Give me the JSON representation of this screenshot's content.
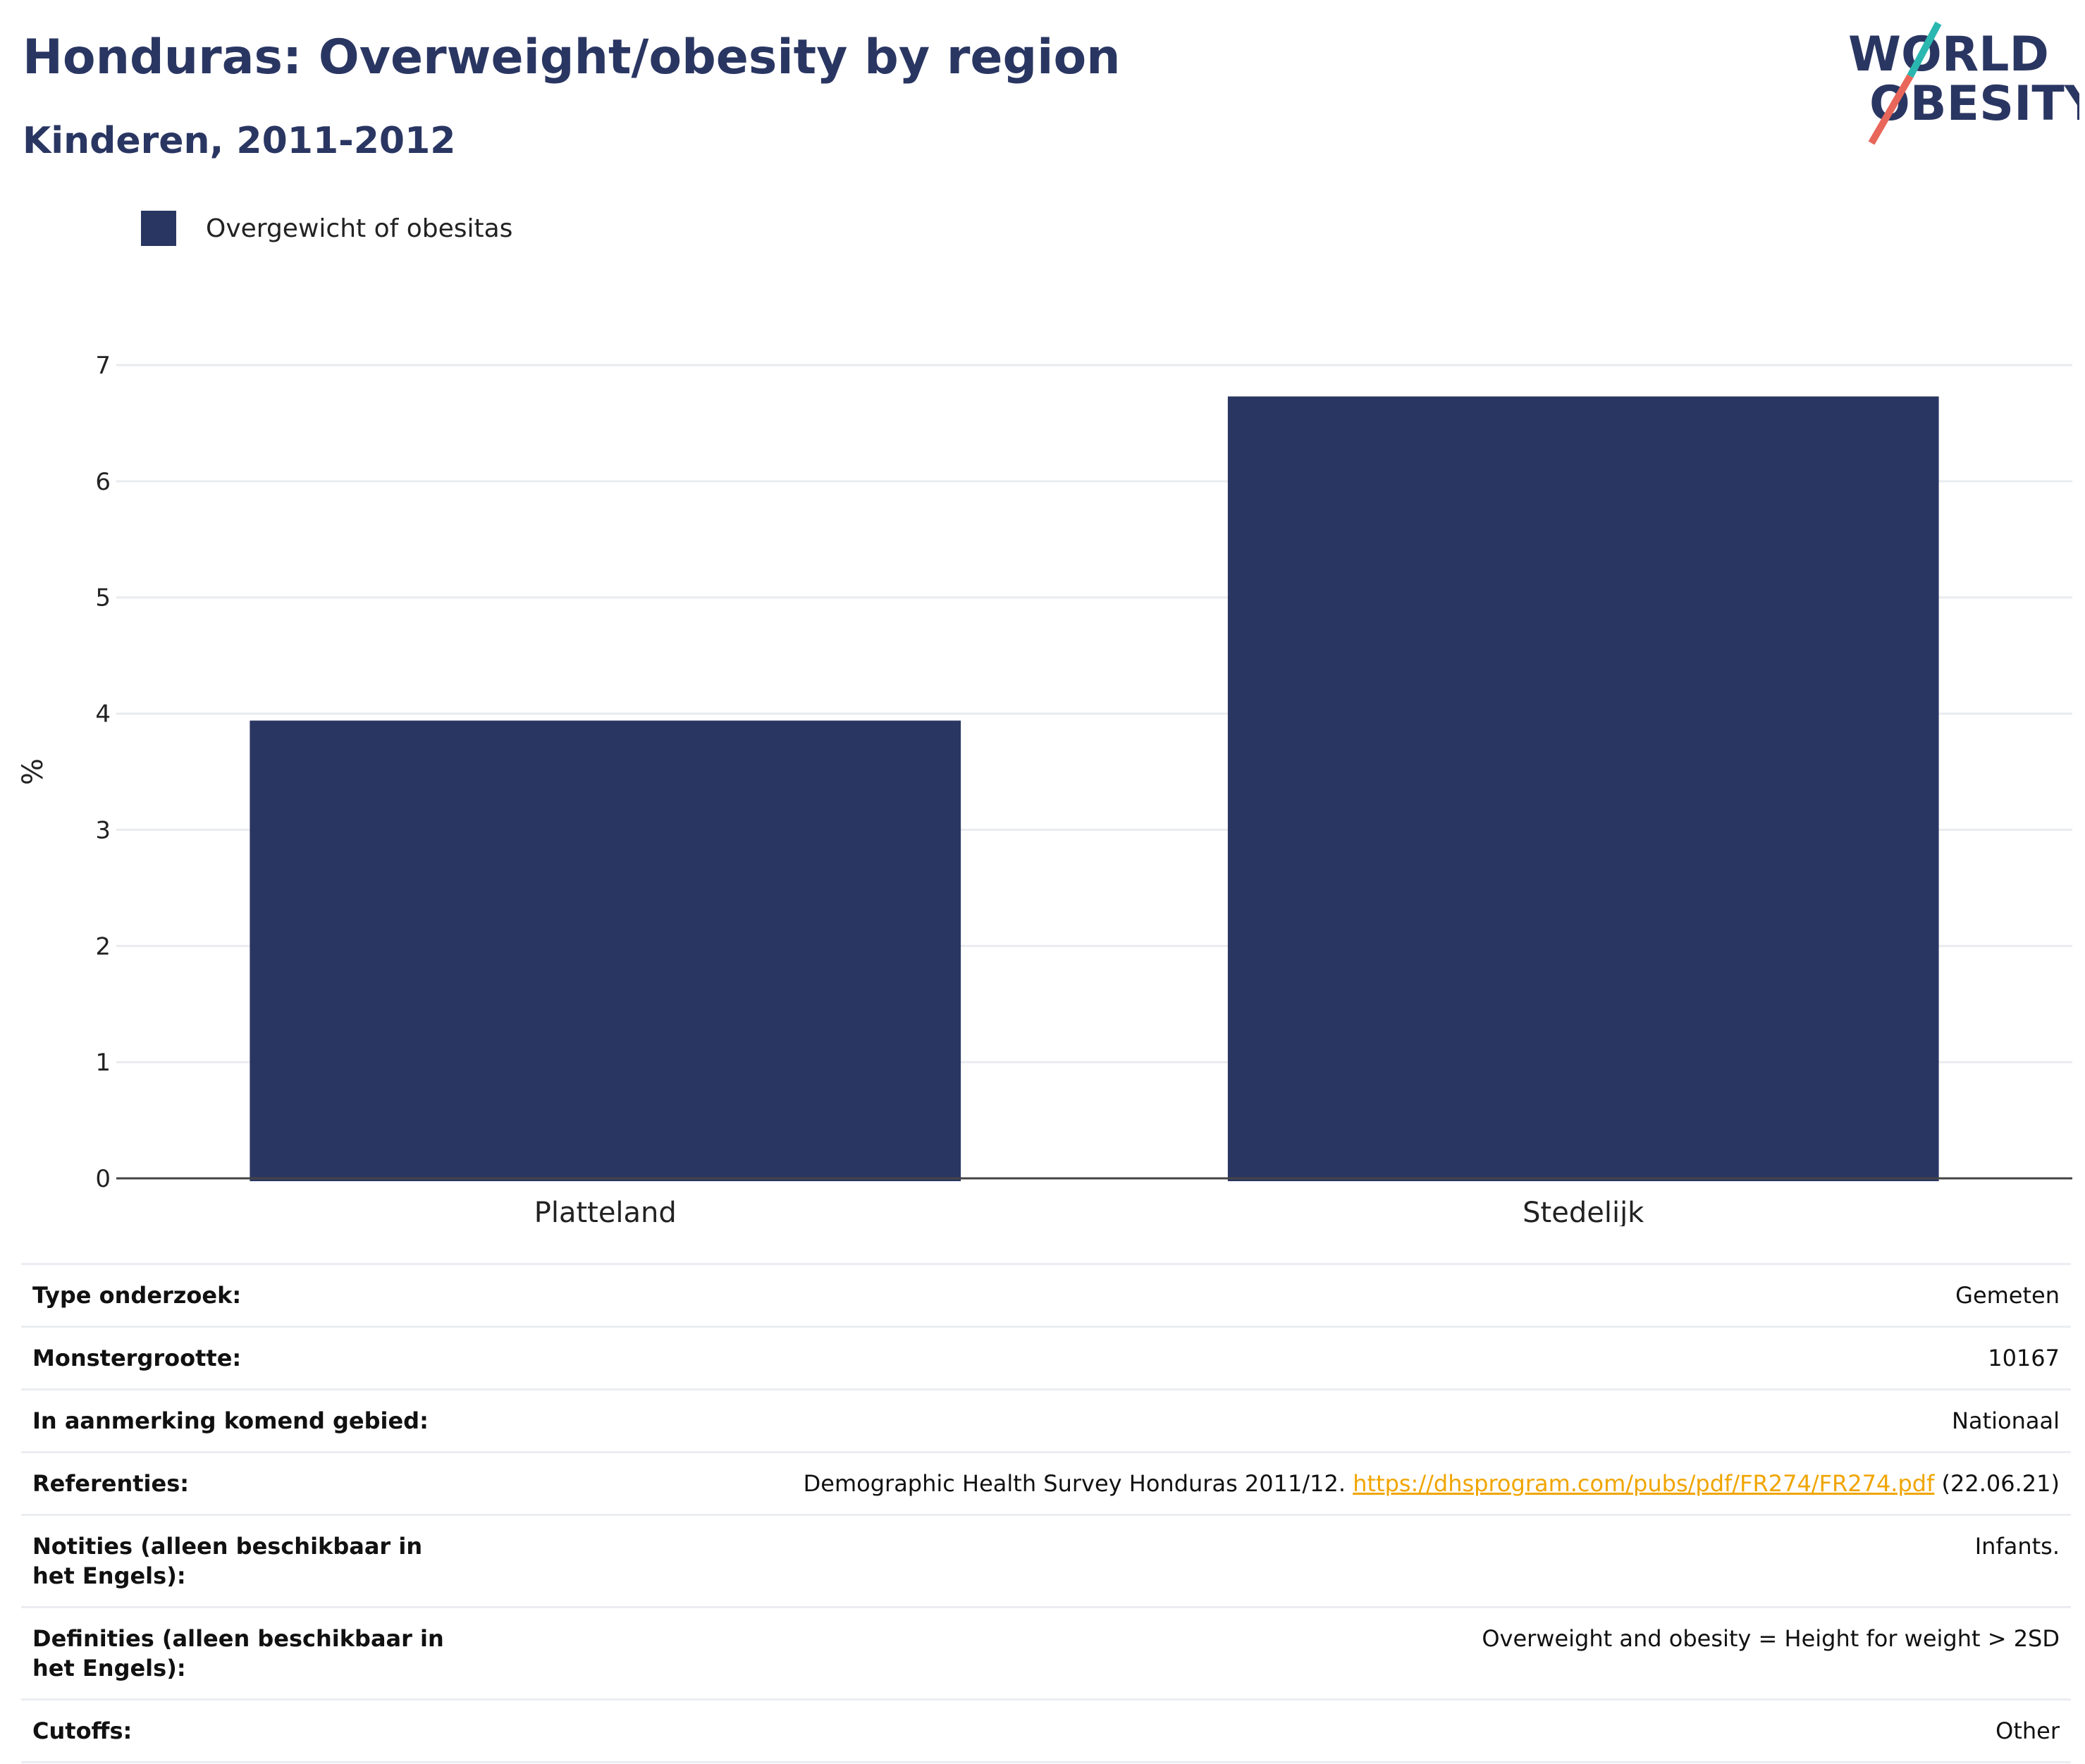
{
  "header": {
    "title": "Honduras: Overweight/obesity by region",
    "subtitle": "Kinderen, 2011-2012"
  },
  "logo": {
    "line1": "WORLD",
    "line2": "OBESITY",
    "colors": {
      "text": "#2a3662",
      "slash_top": "#2ab7b0",
      "slash_bottom": "#e8665a"
    }
  },
  "legend": {
    "label": "Overgewicht of obesitas",
    "color": "#2a3662"
  },
  "chart_data": {
    "type": "bar",
    "categories": [
      "Platteland",
      "Stedelijk"
    ],
    "series": [
      {
        "name": "Overgewicht of obesitas",
        "values": [
          3.94,
          6.73
        ],
        "color": "#2a3662"
      }
    ],
    "ylabel": "%",
    "xlabel": "",
    "ylim": [
      0,
      7
    ],
    "yticks": [
      0,
      1,
      2,
      3,
      4,
      5,
      6,
      7
    ],
    "grid": true,
    "legend_position": "top-left"
  },
  "metadata": {
    "rows": [
      {
        "label": "Type onderzoek:",
        "value": "Gemeten"
      },
      {
        "label": "Monstergrootte:",
        "value": "10167"
      },
      {
        "label": "In aanmerking komend gebied:",
        "value": "Nationaal"
      },
      {
        "label": "Referenties:",
        "value_pre": "Demographic Health Survey Honduras 2011/12.",
        "link": "https://dhsprogram.com/pubs/pdf/FR274/FR274.pdf",
        "value_post": "(22.06.21)"
      },
      {
        "label": "Notities (alleen beschikbaar in het Engels):",
        "value": "Infants."
      },
      {
        "label": "Definities (alleen beschikbaar in het Engels):",
        "value": "Overweight and obesity = Height for weight > 2SD"
      },
      {
        "label": "Cutoffs:",
        "value": "Other"
      }
    ]
  }
}
